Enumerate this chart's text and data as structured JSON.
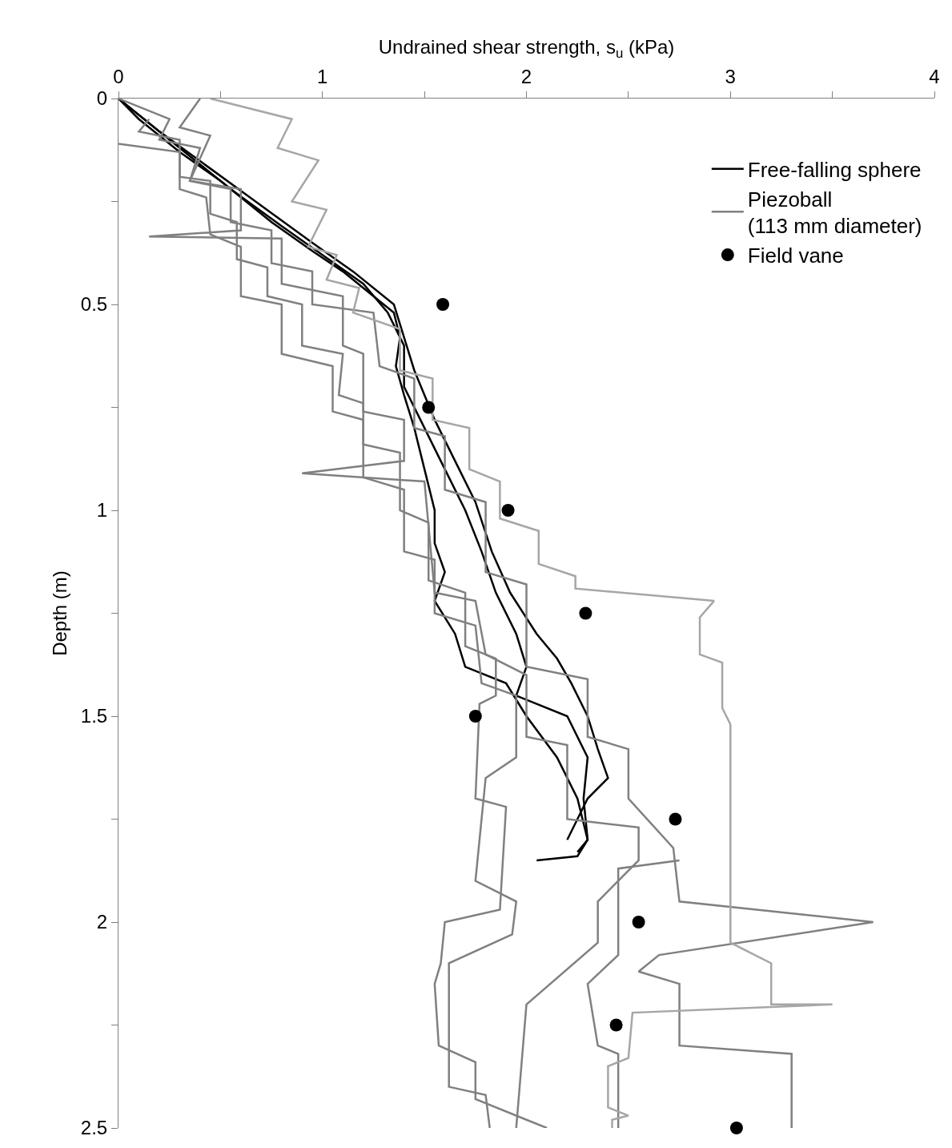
{
  "chart_data": {
    "type": "line",
    "xlabel": "Undrained shear strength, s$_{u}$ (kPa)",
    "ylabel": "Depth (m)",
    "xlim": [
      0,
      4
    ],
    "xticks": [
      0,
      {
        "value": 0.5,
        "label": null
      },
      1,
      {
        "value": 1.5,
        "label": null
      },
      2,
      {
        "value": 2.5,
        "label": null
      },
      3,
      {
        "value": 3.5,
        "label": null
      },
      4
    ],
    "ylim": [
      2.5,
      0
    ],
    "yticks": [
      0,
      {
        "value": 0.25,
        "label": null
      },
      0.5,
      {
        "value": 0.75,
        "label": null
      },
      1,
      {
        "value": 1.25,
        "label": null
      },
      1.5,
      {
        "value": 1.75,
        "label": null
      },
      2,
      {
        "value": 2.25,
        "label": null
      },
      2.5
    ],
    "grid": false,
    "legend": "top right",
    "line_style": "solid",
    "series": [
      {
        "name": "Free-falling sphere",
        "color": "#000000",
        "marker": "none",
        "x": [
          0,
          0.1,
          0.3,
          0.5,
          0.75,
          0.95,
          1.1,
          1.25,
          1.35,
          1.38,
          1.36,
          1.4,
          1.45,
          1.5,
          1.55,
          1.55,
          1.6,
          1.55,
          1.65,
          1.7,
          1.9,
          2.0,
          2.15,
          2.25,
          2.3,
          2.25,
          2.05
        ],
        "values": [
          0,
          0.05,
          0.13,
          0.2,
          0.3,
          0.37,
          0.42,
          0.48,
          0.52,
          0.58,
          0.65,
          0.72,
          0.8,
          0.9,
          1.0,
          1.08,
          1.15,
          1.22,
          1.3,
          1.38,
          1.42,
          1.5,
          1.6,
          1.7,
          1.8,
          1.84,
          1.85
        ]
      },
      {
        "color": "#000000",
        "marker": "none",
        "x": [
          0,
          0.15,
          0.35,
          0.55,
          0.8,
          1.0,
          1.2,
          1.32,
          1.4,
          1.4,
          1.48,
          1.58,
          1.7,
          1.78,
          1.85,
          1.95,
          2.0,
          1.95,
          2.2,
          2.3,
          2.28,
          2.3,
          2.25
        ],
        "values": [
          0,
          0.06,
          0.14,
          0.22,
          0.31,
          0.38,
          0.45,
          0.52,
          0.6,
          0.7,
          0.78,
          0.88,
          1.0,
          1.1,
          1.2,
          1.3,
          1.38,
          1.45,
          1.5,
          1.6,
          1.7,
          1.8,
          1.83
        ]
      },
      {
        "color": "#000000",
        "marker": "none",
        "x": [
          0,
          0.2,
          0.45,
          0.7,
          0.95,
          1.15,
          1.35,
          1.4,
          1.45,
          1.55,
          1.65,
          1.75,
          1.83,
          1.92,
          2.05,
          2.15,
          2.22,
          2.3,
          2.35,
          2.4,
          2.3,
          2.25,
          2.2
        ],
        "values": [
          0,
          0.08,
          0.17,
          0.26,
          0.35,
          0.42,
          0.5,
          0.58,
          0.66,
          0.78,
          0.88,
          0.98,
          1.1,
          1.2,
          1.3,
          1.36,
          1.42,
          1.5,
          1.58,
          1.65,
          1.7,
          1.75,
          1.8
        ]
      },
      {
        "name": "Piezoball\n(113 mm diameter)",
        "color": "#808080",
        "marker": "none",
        "x": [
          0,
          0.3,
          0.3,
          0.45,
          0.45,
          0.58,
          0.58,
          0.73,
          0.73,
          0.9,
          0.9,
          1.1,
          1.08,
          1.2,
          1.2,
          1.38,
          1.38,
          1.52,
          1.52,
          1.7,
          1.7,
          1.85,
          1.85,
          1.77,
          1.75,
          1.9,
          1.87,
          1.6,
          1.58,
          1.55,
          1.57,
          1.75,
          1.75,
          2.0,
          2.1
        ],
        "values": [
          0.11,
          0.13,
          0.19,
          0.2,
          0.28,
          0.3,
          0.39,
          0.41,
          0.48,
          0.5,
          0.6,
          0.62,
          0.72,
          0.74,
          0.84,
          0.86,
          1.0,
          1.03,
          1.17,
          1.2,
          1.33,
          1.36,
          1.45,
          1.47,
          1.7,
          1.72,
          1.97,
          2.0,
          2.1,
          2.15,
          2.3,
          2.34,
          2.43,
          2.48,
          2.5
        ]
      },
      {
        "color": "#808080",
        "marker": "none",
        "x": [
          0.15,
          0.1,
          0.3,
          0.3,
          0.43,
          0.45,
          0.6,
          0.6,
          0.8,
          0.8,
          1.05,
          1.05,
          1.2,
          1.2,
          1.4,
          1.4,
          1.55,
          1.55,
          1.75,
          1.78,
          1.95,
          1.95,
          1.8,
          1.75,
          1.95,
          1.93,
          1.62,
          1.62,
          1.8,
          1.82
        ],
        "values": [
          0.05,
          0.08,
          0.1,
          0.22,
          0.24,
          0.33,
          0.36,
          0.48,
          0.5,
          0.62,
          0.65,
          0.76,
          0.78,
          0.92,
          0.95,
          1.1,
          1.12,
          1.25,
          1.28,
          1.42,
          1.45,
          1.6,
          1.65,
          1.9,
          1.95,
          2.03,
          2.1,
          2.4,
          2.42,
          2.5
        ]
      },
      {
        "color": "#808080",
        "marker": "none",
        "x": [
          0,
          0.25,
          0.2,
          0.4,
          0.35,
          0.6,
          0.6,
          0.15,
          0.8,
          0.8,
          1.1,
          1.1,
          1.2,
          1.2,
          1.4,
          1.4,
          0.9,
          1.5,
          1.55,
          1.75,
          1.8,
          2.0,
          2.0,
          2.2,
          2.2,
          2.55,
          2.55,
          2.35,
          2.35,
          2.0,
          1.95
        ],
        "values": [
          0,
          0.05,
          0.1,
          0.12,
          0.2,
          0.22,
          0.32,
          0.335,
          0.34,
          0.45,
          0.48,
          0.6,
          0.62,
          0.76,
          0.78,
          0.88,
          0.91,
          0.93,
          1.2,
          1.22,
          1.35,
          1.4,
          1.55,
          1.57,
          1.75,
          1.77,
          1.85,
          1.95,
          2.05,
          2.2,
          2.5
        ]
      },
      {
        "color": "#808080",
        "marker": "none",
        "x": [
          0.4,
          0.3,
          0.45,
          0.35,
          0.55,
          0.55,
          0.75,
          0.75,
          0.95,
          0.95,
          1.25,
          1.28,
          1.45,
          1.45,
          1.6,
          1.6,
          1.8,
          1.8,
          2.0,
          2.0,
          2.3,
          2.3,
          2.5,
          2.5,
          2.72,
          2.75,
          3.7,
          2.65,
          2.55,
          2.75,
          2.75,
          3.3,
          3.3
        ],
        "values": [
          0,
          0.07,
          0.09,
          0.2,
          0.22,
          0.3,
          0.32,
          0.4,
          0.42,
          0.5,
          0.52,
          0.65,
          0.68,
          0.8,
          0.82,
          0.95,
          0.98,
          1.15,
          1.18,
          1.38,
          1.41,
          1.55,
          1.58,
          1.7,
          1.82,
          1.95,
          2.0,
          2.08,
          2.12,
          2.15,
          2.3,
          2.32,
          2.5
        ]
      },
      {
        "color": "#808080",
        "marker": "none",
        "x": [
          2.75,
          2.45,
          2.45,
          2.3,
          2.35,
          2.45,
          2.45
        ],
        "values": [
          1.85,
          1.87,
          2.08,
          2.15,
          2.3,
          2.32,
          2.5
        ]
      },
      {
        "color": "#a6a6a6",
        "marker": "none",
        "x": [
          0.45,
          0.85,
          0.78,
          0.98,
          0.85,
          1.02,
          0.93,
          1.07,
          1.02,
          1.18,
          1.15,
          1.38,
          1.38,
          1.54,
          1.54,
          1.72,
          1.72,
          1.87,
          1.87,
          2.06,
          2.06,
          2.24,
          2.24,
          2.92,
          2.85,
          2.85,
          2.96,
          2.96,
          3.0,
          3.0,
          3.2,
          3.2,
          3.5,
          2.52,
          2.5,
          2.4,
          2.4,
          2.5,
          2.42,
          2.42
        ],
        "values": [
          0,
          0.05,
          0.12,
          0.15,
          0.25,
          0.27,
          0.36,
          0.38,
          0.44,
          0.46,
          0.52,
          0.56,
          0.66,
          0.68,
          0.78,
          0.8,
          0.9,
          0.93,
          1.02,
          1.05,
          1.13,
          1.16,
          1.19,
          1.22,
          1.26,
          1.35,
          1.37,
          1.48,
          1.52,
          2.05,
          2.1,
          2.2,
          2.2,
          2.22,
          2.33,
          2.35,
          2.45,
          2.47,
          2.48,
          2.5
        ]
      },
      {
        "name": "Field vane",
        "color": "#000000",
        "type": "scatter",
        "marker": "circle",
        "x": [
          1.59,
          1.52,
          1.91,
          2.29,
          1.75,
          2.73,
          2.55,
          2.44,
          3.03
        ],
        "values": [
          0.5,
          0.75,
          1.0,
          1.25,
          1.5,
          1.75,
          2.0,
          2.25,
          2.5
        ]
      }
    ]
  }
}
